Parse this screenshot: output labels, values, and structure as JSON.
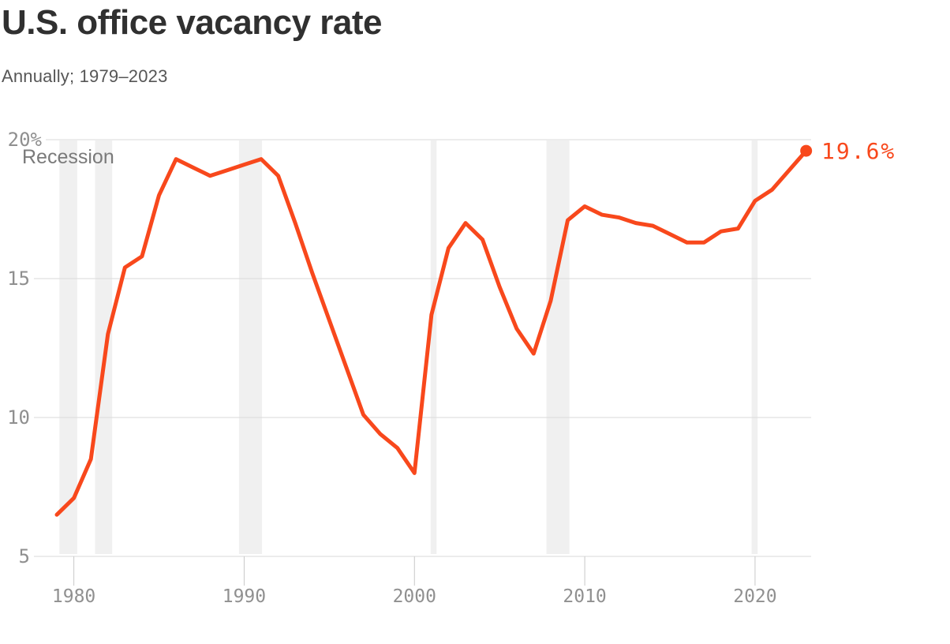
{
  "header": {
    "title": "U.S. office vacancy rate",
    "subtitle": "Annually; 1979–2023"
  },
  "chart_data": {
    "type": "line",
    "title": "U.S. office vacancy rate",
    "subtitle": "Annually; 1979–2023",
    "unit": "%",
    "x": [
      1979,
      1980,
      1981,
      1982,
      1983,
      1984,
      1985,
      1986,
      1987,
      1988,
      1989,
      1990,
      1991,
      1992,
      1993,
      1994,
      1995,
      1996,
      1997,
      1998,
      1999,
      2000,
      2001,
      2002,
      2003,
      2004,
      2005,
      2006,
      2007,
      2008,
      2009,
      2010,
      2011,
      2012,
      2013,
      2014,
      2015,
      2016,
      2017,
      2018,
      2019,
      2020,
      2021,
      2022,
      2023
    ],
    "values": [
      6.5,
      7.1,
      8.5,
      13.0,
      15.4,
      15.8,
      18.0,
      19.3,
      19.0,
      18.7,
      18.9,
      19.1,
      19.3,
      18.7,
      17.0,
      15.2,
      13.5,
      11.8,
      10.1,
      9.4,
      8.9,
      8.0,
      13.7,
      16.1,
      17.0,
      16.4,
      14.7,
      13.2,
      12.3,
      14.2,
      17.1,
      17.6,
      17.3,
      17.2,
      17.0,
      16.9,
      16.6,
      16.3,
      16.3,
      16.7,
      16.8,
      17.8,
      18.2,
      18.9,
      19.6
    ],
    "ylim": [
      5,
      20
    ],
    "xlim": [
      1976.6,
      2023.5
    ],
    "grid": "horizontal-only",
    "legend_position": "none",
    "y_ticks": [
      {
        "value": 20,
        "label": "20%"
      },
      {
        "value": 15,
        "label": "15"
      },
      {
        "value": 10,
        "label": "10"
      },
      {
        "value": 5,
        "label": "5"
      }
    ],
    "x_ticks": [
      {
        "value": 1980,
        "label": "1980"
      },
      {
        "value": 1990,
        "label": "1990"
      },
      {
        "value": 2000,
        "label": "2000"
      },
      {
        "value": 2010,
        "label": "2010"
      },
      {
        "value": 2020,
        "label": "2020"
      }
    ],
    "end_label": "19.6%",
    "end_point": {
      "x": 2023,
      "value": 19.6
    },
    "recession_label": "Recession",
    "recession_bands": [
      [
        1979.15,
        1980.2
      ],
      [
        1981.25,
        1982.25
      ],
      [
        1989.7,
        1991.05
      ],
      [
        2000.95,
        2001.3
      ],
      [
        2007.75,
        2009.1
      ],
      [
        2019.8,
        2020.15
      ]
    ],
    "colors": {
      "line": "#f8481c",
      "end_dot": "#f8481c",
      "grid": "#dadada",
      "tick": "#c8c8c8",
      "band": "#f0f0f0",
      "axis_text": "#8f8f8f",
      "recession_text": "#7a7a7a",
      "title_text": "#303030",
      "subtitle_text": "#565656"
    }
  }
}
